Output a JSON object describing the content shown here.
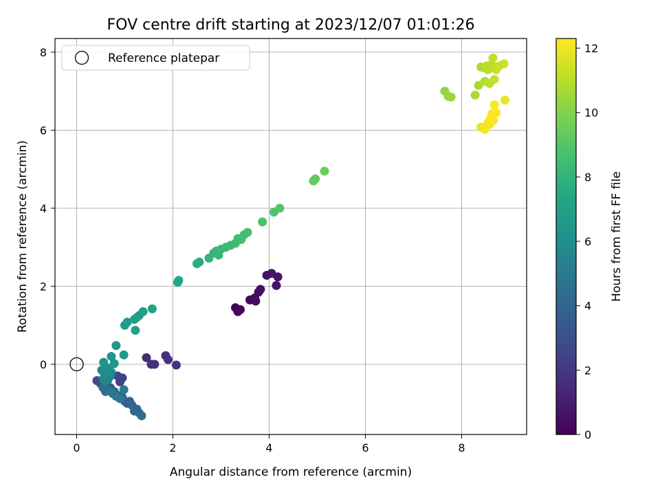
{
  "chart_data": {
    "type": "scatter",
    "title": "FOV centre drift starting at 2023/12/07 01:01:26",
    "xlabel": "Angular distance from reference (arcmin)",
    "ylabel": "Rotation from reference (arcmin)",
    "colorbar_label": "Hours from first FF file",
    "xlim": [
      -0.45,
      9.35
    ],
    "ylim": [
      -1.8,
      8.35
    ],
    "x_ticks": [
      0,
      2,
      4,
      6,
      8
    ],
    "y_ticks": [
      0,
      2,
      4,
      6,
      8
    ],
    "colorbar_range": [
      0,
      12.3
    ],
    "colorbar_ticks": [
      0,
      2,
      4,
      6,
      8,
      10,
      12
    ],
    "colormap": "viridis",
    "grid": true,
    "legend": {
      "placement": "upper-left",
      "entries": [
        "Reference platepar"
      ]
    },
    "reference_point": {
      "x": 0,
      "y": 0
    },
    "points": [
      {
        "x": 3.3,
        "y": 1.45,
        "h": 0.15
      },
      {
        "x": 3.35,
        "y": 1.35,
        "h": 0.2
      },
      {
        "x": 3.4,
        "y": 1.4,
        "h": 0.25
      },
      {
        "x": 3.6,
        "y": 1.65,
        "h": 0.3
      },
      {
        "x": 3.7,
        "y": 1.7,
        "h": 0.35
      },
      {
        "x": 3.72,
        "y": 1.62,
        "h": 0.4
      },
      {
        "x": 3.78,
        "y": 1.85,
        "h": 0.45
      },
      {
        "x": 3.82,
        "y": 1.92,
        "h": 0.5
      },
      {
        "x": 3.95,
        "y": 2.28,
        "h": 0.55
      },
      {
        "x": 4.05,
        "y": 2.33,
        "h": 0.6
      },
      {
        "x": 4.15,
        "y": 2.02,
        "h": 0.65
      },
      {
        "x": 4.18,
        "y": 2.24,
        "h": 0.7
      },
      {
        "x": 1.45,
        "y": 0.17,
        "h": 1.6
      },
      {
        "x": 1.55,
        "y": 0.0,
        "h": 1.65
      },
      {
        "x": 1.62,
        "y": 0.0,
        "h": 1.7
      },
      {
        "x": 1.85,
        "y": 0.22,
        "h": 1.75
      },
      {
        "x": 1.9,
        "y": 0.12,
        "h": 1.8
      },
      {
        "x": 2.07,
        "y": -0.02,
        "h": 1.85
      },
      {
        "x": 0.95,
        "y": -0.35,
        "h": 2.4
      },
      {
        "x": 0.9,
        "y": -0.45,
        "h": 2.5
      },
      {
        "x": 0.85,
        "y": -0.3,
        "h": 2.6
      },
      {
        "x": 0.42,
        "y": -0.42,
        "h": 2.9
      },
      {
        "x": 0.5,
        "y": -0.5,
        "h": 3.0
      },
      {
        "x": 0.55,
        "y": -0.55,
        "h": 3.1
      },
      {
        "x": 0.6,
        "y": -0.65,
        "h": 3.2
      },
      {
        "x": 0.7,
        "y": -0.6,
        "h": 3.3
      },
      {
        "x": 0.78,
        "y": -0.7,
        "h": 3.4
      },
      {
        "x": 0.85,
        "y": -0.8,
        "h": 3.5
      },
      {
        "x": 0.95,
        "y": -0.85,
        "h": 3.6
      },
      {
        "x": 1.0,
        "y": -0.95,
        "h": 3.7
      },
      {
        "x": 1.05,
        "y": -1.0,
        "h": 3.8
      },
      {
        "x": 1.1,
        "y": -0.95,
        "h": 3.9
      },
      {
        "x": 1.15,
        "y": -1.05,
        "h": 4.0
      },
      {
        "x": 1.2,
        "y": -1.2,
        "h": 4.1
      },
      {
        "x": 1.25,
        "y": -1.15,
        "h": 4.2
      },
      {
        "x": 1.3,
        "y": -1.25,
        "h": 4.3
      },
      {
        "x": 1.35,
        "y": -1.32,
        "h": 4.4
      },
      {
        "x": 0.55,
        "y": -0.6,
        "h": 4.5
      },
      {
        "x": 0.6,
        "y": -0.7,
        "h": 4.6
      },
      {
        "x": 0.68,
        "y": -0.68,
        "h": 4.7
      },
      {
        "x": 0.75,
        "y": -0.75,
        "h": 4.8
      },
      {
        "x": 0.82,
        "y": -0.82,
        "h": 4.9
      },
      {
        "x": 0.9,
        "y": -0.88,
        "h": 5.0
      },
      {
        "x": 0.98,
        "y": -0.65,
        "h": 5.1
      },
      {
        "x": 0.55,
        "y": -0.38,
        "h": 5.3
      },
      {
        "x": 0.6,
        "y": -0.45,
        "h": 5.4
      },
      {
        "x": 0.65,
        "y": -0.4,
        "h": 5.5
      },
      {
        "x": 0.7,
        "y": -0.3,
        "h": 5.6
      },
      {
        "x": 0.72,
        "y": -0.2,
        "h": 5.7
      },
      {
        "x": 0.58,
        "y": -0.25,
        "h": 5.8
      },
      {
        "x": 0.52,
        "y": -0.15,
        "h": 5.9
      },
      {
        "x": 0.62,
        "y": -0.18,
        "h": 6.0
      },
      {
        "x": 0.66,
        "y": -0.1,
        "h": 6.1
      },
      {
        "x": 0.56,
        "y": 0.05,
        "h": 6.2
      },
      {
        "x": 0.72,
        "y": 0.2,
        "h": 6.3
      },
      {
        "x": 0.78,
        "y": 0.02,
        "h": 6.4
      },
      {
        "x": 0.82,
        "y": 0.48,
        "h": 6.5
      },
      {
        "x": 0.98,
        "y": 0.24,
        "h": 6.6
      },
      {
        "x": 1.0,
        "y": 1.0,
        "h": 6.7
      },
      {
        "x": 1.05,
        "y": 1.08,
        "h": 6.75
      },
      {
        "x": 1.2,
        "y": 1.15,
        "h": 6.8
      },
      {
        "x": 1.25,
        "y": 1.2,
        "h": 6.85
      },
      {
        "x": 1.3,
        "y": 1.25,
        "h": 6.9
      },
      {
        "x": 1.38,
        "y": 1.35,
        "h": 6.95
      },
      {
        "x": 1.22,
        "y": 0.87,
        "h": 7.0
      },
      {
        "x": 1.57,
        "y": 1.42,
        "h": 7.05
      },
      {
        "x": 2.1,
        "y": 2.1,
        "h": 7.3
      },
      {
        "x": 2.12,
        "y": 2.15,
        "h": 7.35
      },
      {
        "x": 2.5,
        "y": 2.58,
        "h": 7.6
      },
      {
        "x": 2.55,
        "y": 2.62,
        "h": 7.65
      },
      {
        "x": 2.75,
        "y": 2.72,
        "h": 8.0
      },
      {
        "x": 2.85,
        "y": 2.85,
        "h": 8.1
      },
      {
        "x": 2.9,
        "y": 2.9,
        "h": 8.15
      },
      {
        "x": 2.95,
        "y": 2.8,
        "h": 8.2
      },
      {
        "x": 3.0,
        "y": 2.95,
        "h": 8.25
      },
      {
        "x": 3.1,
        "y": 3.0,
        "h": 8.3
      },
      {
        "x": 3.2,
        "y": 3.05,
        "h": 8.35
      },
      {
        "x": 3.3,
        "y": 3.1,
        "h": 8.4
      },
      {
        "x": 3.35,
        "y": 3.22,
        "h": 8.45
      },
      {
        "x": 3.42,
        "y": 3.2,
        "h": 8.5
      },
      {
        "x": 3.48,
        "y": 3.32,
        "h": 8.55
      },
      {
        "x": 3.55,
        "y": 3.38,
        "h": 8.6
      },
      {
        "x": 3.86,
        "y": 3.65,
        "h": 8.8
      },
      {
        "x": 4.1,
        "y": 3.9,
        "h": 8.9
      },
      {
        "x": 4.22,
        "y": 4.0,
        "h": 9.0
      },
      {
        "x": 4.92,
        "y": 4.7,
        "h": 9.3
      },
      {
        "x": 4.96,
        "y": 4.75,
        "h": 9.35
      },
      {
        "x": 5.15,
        "y": 4.95,
        "h": 9.45
      },
      {
        "x": 7.65,
        "y": 7.0,
        "h": 10.3
      },
      {
        "x": 7.72,
        "y": 6.87,
        "h": 10.35
      },
      {
        "x": 7.78,
        "y": 6.85,
        "h": 10.4
      },
      {
        "x": 8.28,
        "y": 6.9,
        "h": 10.7
      },
      {
        "x": 8.35,
        "y": 7.15,
        "h": 10.75
      },
      {
        "x": 8.4,
        "y": 7.62,
        "h": 10.8
      },
      {
        "x": 8.45,
        "y": 7.6,
        "h": 10.85
      },
      {
        "x": 8.48,
        "y": 7.25,
        "h": 10.9
      },
      {
        "x": 8.52,
        "y": 7.65,
        "h": 10.95
      },
      {
        "x": 8.55,
        "y": 7.55,
        "h": 11.0
      },
      {
        "x": 8.58,
        "y": 7.2,
        "h": 11.05
      },
      {
        "x": 8.62,
        "y": 7.68,
        "h": 11.1
      },
      {
        "x": 8.65,
        "y": 7.85,
        "h": 11.15
      },
      {
        "x": 8.68,
        "y": 7.3,
        "h": 11.2
      },
      {
        "x": 8.72,
        "y": 7.55,
        "h": 11.25
      },
      {
        "x": 8.78,
        "y": 7.65,
        "h": 11.3
      },
      {
        "x": 8.88,
        "y": 7.7,
        "h": 11.35
      },
      {
        "x": 8.9,
        "y": 6.77,
        "h": 11.9
      },
      {
        "x": 8.4,
        "y": 6.08,
        "h": 12.0
      },
      {
        "x": 8.48,
        "y": 6.02,
        "h": 12.05
      },
      {
        "x": 8.52,
        "y": 6.1,
        "h": 12.1
      },
      {
        "x": 8.55,
        "y": 6.2,
        "h": 12.12
      },
      {
        "x": 8.58,
        "y": 6.15,
        "h": 12.15
      },
      {
        "x": 8.6,
        "y": 6.3,
        "h": 12.18
      },
      {
        "x": 8.63,
        "y": 6.42,
        "h": 12.2
      },
      {
        "x": 8.66,
        "y": 6.25,
        "h": 12.22
      },
      {
        "x": 8.68,
        "y": 6.65,
        "h": 12.25
      },
      {
        "x": 8.72,
        "y": 6.45,
        "h": 12.28
      }
    ]
  }
}
